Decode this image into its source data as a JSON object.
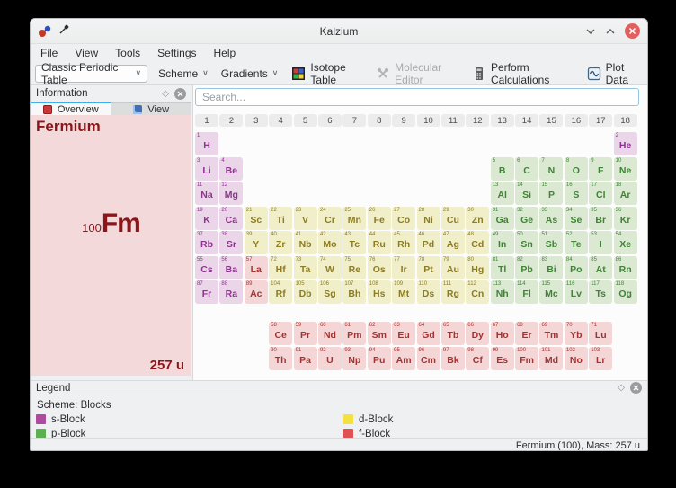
{
  "window": {
    "title": "Kalzium"
  },
  "menu": {
    "items": [
      "File",
      "View",
      "Tools",
      "Settings",
      "Help"
    ]
  },
  "toolbar": {
    "table_select": "Classic Periodic Table",
    "scheme_label": "Scheme",
    "gradients_label": "Gradients",
    "isotope_table_label": "Isotope Table",
    "molecular_editor_label": "Molecular Editor",
    "perform_calculations_label": "Perform Calculations",
    "plot_data_label": "Plot Data"
  },
  "information_panel": {
    "title": "Information",
    "tabs": [
      {
        "label": "Overview"
      },
      {
        "label": "View"
      }
    ],
    "element_name": "Fermium",
    "atomic_number": "100",
    "symbol": "Fm",
    "mass": "257 u"
  },
  "search": {
    "placeholder": "Search..."
  },
  "periodic_table": {
    "group_headers": [
      "1",
      "2",
      "3",
      "4",
      "5",
      "6",
      "7",
      "8",
      "9",
      "10",
      "11",
      "12",
      "13",
      "14",
      "15",
      "16",
      "17",
      "18"
    ],
    "elements": [
      {
        "n": 1,
        "s": "H",
        "b": "s",
        "r": 1,
        "c": 1
      },
      {
        "n": 2,
        "s": "He",
        "b": "s",
        "r": 1,
        "c": 18
      },
      {
        "n": 3,
        "s": "Li",
        "b": "s",
        "r": 2,
        "c": 1
      },
      {
        "n": 4,
        "s": "Be",
        "b": "s",
        "r": 2,
        "c": 2
      },
      {
        "n": 5,
        "s": "B",
        "b": "p",
        "r": 2,
        "c": 13
      },
      {
        "n": 6,
        "s": "C",
        "b": "p",
        "r": 2,
        "c": 14
      },
      {
        "n": 7,
        "s": "N",
        "b": "p",
        "r": 2,
        "c": 15
      },
      {
        "n": 8,
        "s": "O",
        "b": "p",
        "r": 2,
        "c": 16
      },
      {
        "n": 9,
        "s": "F",
        "b": "p",
        "r": 2,
        "c": 17
      },
      {
        "n": 10,
        "s": "Ne",
        "b": "p",
        "r": 2,
        "c": 18
      },
      {
        "n": 11,
        "s": "Na",
        "b": "s",
        "r": 3,
        "c": 1
      },
      {
        "n": 12,
        "s": "Mg",
        "b": "s",
        "r": 3,
        "c": 2
      },
      {
        "n": 13,
        "s": "Al",
        "b": "p",
        "r": 3,
        "c": 13
      },
      {
        "n": 14,
        "s": "Si",
        "b": "p",
        "r": 3,
        "c": 14
      },
      {
        "n": 15,
        "s": "P",
        "b": "p",
        "r": 3,
        "c": 15
      },
      {
        "n": 16,
        "s": "S",
        "b": "p",
        "r": 3,
        "c": 16
      },
      {
        "n": 17,
        "s": "Cl",
        "b": "p",
        "r": 3,
        "c": 17
      },
      {
        "n": 18,
        "s": "Ar",
        "b": "p",
        "r": 3,
        "c": 18
      },
      {
        "n": 19,
        "s": "K",
        "b": "s",
        "r": 4,
        "c": 1
      },
      {
        "n": 20,
        "s": "Ca",
        "b": "s",
        "r": 4,
        "c": 2
      },
      {
        "n": 21,
        "s": "Sc",
        "b": "d",
        "r": 4,
        "c": 3
      },
      {
        "n": 22,
        "s": "Ti",
        "b": "d",
        "r": 4,
        "c": 4
      },
      {
        "n": 23,
        "s": "V",
        "b": "d",
        "r": 4,
        "c": 5
      },
      {
        "n": 24,
        "s": "Cr",
        "b": "d",
        "r": 4,
        "c": 6
      },
      {
        "n": 25,
        "s": "Mn",
        "b": "d",
        "r": 4,
        "c": 7
      },
      {
        "n": 26,
        "s": "Fe",
        "b": "d",
        "r": 4,
        "c": 8
      },
      {
        "n": 27,
        "s": "Co",
        "b": "d",
        "r": 4,
        "c": 9
      },
      {
        "n": 28,
        "s": "Ni",
        "b": "d",
        "r": 4,
        "c": 10
      },
      {
        "n": 29,
        "s": "Cu",
        "b": "d",
        "r": 4,
        "c": 11
      },
      {
        "n": 30,
        "s": "Zn",
        "b": "d",
        "r": 4,
        "c": 12
      },
      {
        "n": 31,
        "s": "Ga",
        "b": "p",
        "r": 4,
        "c": 13
      },
      {
        "n": 32,
        "s": "Ge",
        "b": "p",
        "r": 4,
        "c": 14
      },
      {
        "n": 33,
        "s": "As",
        "b": "p",
        "r": 4,
        "c": 15
      },
      {
        "n": 34,
        "s": "Se",
        "b": "p",
        "r": 4,
        "c": 16
      },
      {
        "n": 35,
        "s": "Br",
        "b": "p",
        "r": 4,
        "c": 17
      },
      {
        "n": 36,
        "s": "Kr",
        "b": "p",
        "r": 4,
        "c": 18
      },
      {
        "n": 37,
        "s": "Rb",
        "b": "s",
        "r": 5,
        "c": 1
      },
      {
        "n": 38,
        "s": "Sr",
        "b": "s",
        "r": 5,
        "c": 2
      },
      {
        "n": 39,
        "s": "Y",
        "b": "d",
        "r": 5,
        "c": 3
      },
      {
        "n": 40,
        "s": "Zr",
        "b": "d",
        "r": 5,
        "c": 4
      },
      {
        "n": 41,
        "s": "Nb",
        "b": "d",
        "r": 5,
        "c": 5
      },
      {
        "n": 42,
        "s": "Mo",
        "b": "d",
        "r": 5,
        "c": 6
      },
      {
        "n": 43,
        "s": "Tc",
        "b": "d",
        "r": 5,
        "c": 7
      },
      {
        "n": 44,
        "s": "Ru",
        "b": "d",
        "r": 5,
        "c": 8
      },
      {
        "n": 45,
        "s": "Rh",
        "b": "d",
        "r": 5,
        "c": 9
      },
      {
        "n": 46,
        "s": "Pd",
        "b": "d",
        "r": 5,
        "c": 10
      },
      {
        "n": 47,
        "s": "Ag",
        "b": "d",
        "r": 5,
        "c": 11
      },
      {
        "n": 48,
        "s": "Cd",
        "b": "d",
        "r": 5,
        "c": 12
      },
      {
        "n": 49,
        "s": "In",
        "b": "p",
        "r": 5,
        "c": 13
      },
      {
        "n": 50,
        "s": "Sn",
        "b": "p",
        "r": 5,
        "c": 14
      },
      {
        "n": 51,
        "s": "Sb",
        "b": "p",
        "r": 5,
        "c": 15
      },
      {
        "n": 52,
        "s": "Te",
        "b": "p",
        "r": 5,
        "c": 16
      },
      {
        "n": 53,
        "s": "I",
        "b": "p",
        "r": 5,
        "c": 17
      },
      {
        "n": 54,
        "s": "Xe",
        "b": "p",
        "r": 5,
        "c": 18
      },
      {
        "n": 55,
        "s": "Cs",
        "b": "s",
        "r": 6,
        "c": 1
      },
      {
        "n": 56,
        "s": "Ba",
        "b": "s",
        "r": 6,
        "c": 2
      },
      {
        "n": 57,
        "s": "La",
        "b": "f",
        "r": 6,
        "c": 3
      },
      {
        "n": 72,
        "s": "Hf",
        "b": "d",
        "r": 6,
        "c": 4
      },
      {
        "n": 73,
        "s": "Ta",
        "b": "d",
        "r": 6,
        "c": 5
      },
      {
        "n": 74,
        "s": "W",
        "b": "d",
        "r": 6,
        "c": 6
      },
      {
        "n": 75,
        "s": "Re",
        "b": "d",
        "r": 6,
        "c": 7
      },
      {
        "n": 76,
        "s": "Os",
        "b": "d",
        "r": 6,
        "c": 8
      },
      {
        "n": 77,
        "s": "Ir",
        "b": "d",
        "r": 6,
        "c": 9
      },
      {
        "n": 78,
        "s": "Pt",
        "b": "d",
        "r": 6,
        "c": 10
      },
      {
        "n": 79,
        "s": "Au",
        "b": "d",
        "r": 6,
        "c": 11
      },
      {
        "n": 80,
        "s": "Hg",
        "b": "d",
        "r": 6,
        "c": 12
      },
      {
        "n": 81,
        "s": "Tl",
        "b": "p",
        "r": 6,
        "c": 13
      },
      {
        "n": 82,
        "s": "Pb",
        "b": "p",
        "r": 6,
        "c": 14
      },
      {
        "n": 83,
        "s": "Bi",
        "b": "p",
        "r": 6,
        "c": 15
      },
      {
        "n": 84,
        "s": "Po",
        "b": "p",
        "r": 6,
        "c": 16
      },
      {
        "n": 85,
        "s": "At",
        "b": "p",
        "r": 6,
        "c": 17
      },
      {
        "n": 86,
        "s": "Rn",
        "b": "p",
        "r": 6,
        "c": 18
      },
      {
        "n": 87,
        "s": "Fr",
        "b": "s",
        "r": 7,
        "c": 1
      },
      {
        "n": 88,
        "s": "Ra",
        "b": "s",
        "r": 7,
        "c": 2
      },
      {
        "n": 89,
        "s": "Ac",
        "b": "f",
        "r": 7,
        "c": 3
      },
      {
        "n": 104,
        "s": "Rf",
        "b": "d",
        "r": 7,
        "c": 4
      },
      {
        "n": 105,
        "s": "Db",
        "b": "d",
        "r": 7,
        "c": 5
      },
      {
        "n": 106,
        "s": "Sg",
        "b": "d",
        "r": 7,
        "c": 6
      },
      {
        "n": 107,
        "s": "Bh",
        "b": "d",
        "r": 7,
        "c": 7
      },
      {
        "n": 108,
        "s": "Hs",
        "b": "d",
        "r": 7,
        "c": 8
      },
      {
        "n": 109,
        "s": "Mt",
        "b": "d",
        "r": 7,
        "c": 9
      },
      {
        "n": 110,
        "s": "Ds",
        "b": "d",
        "r": 7,
        "c": 10
      },
      {
        "n": 111,
        "s": "Rg",
        "b": "d",
        "r": 7,
        "c": 11
      },
      {
        "n": 112,
        "s": "Cn",
        "b": "d",
        "r": 7,
        "c": 12
      },
      {
        "n": 113,
        "s": "Nh",
        "b": "p",
        "r": 7,
        "c": 13
      },
      {
        "n": 114,
        "s": "Fl",
        "b": "p",
        "r": 7,
        "c": 14
      },
      {
        "n": 115,
        "s": "Mc",
        "b": "p",
        "r": 7,
        "c": 15
      },
      {
        "n": 116,
        "s": "Lv",
        "b": "p",
        "r": 7,
        "c": 16
      },
      {
        "n": 117,
        "s": "Ts",
        "b": "p",
        "r": 7,
        "c": 17
      },
      {
        "n": 118,
        "s": "Og",
        "b": "p",
        "r": 7,
        "c": 18
      },
      {
        "n": 58,
        "s": "Ce",
        "b": "f",
        "r": 9,
        "c": 4
      },
      {
        "n": 59,
        "s": "Pr",
        "b": "f",
        "r": 9,
        "c": 5
      },
      {
        "n": 60,
        "s": "Nd",
        "b": "f",
        "r": 9,
        "c": 6
      },
      {
        "n": 61,
        "s": "Pm",
        "b": "f",
        "r": 9,
        "c": 7
      },
      {
        "n": 62,
        "s": "Sm",
        "b": "f",
        "r": 9,
        "c": 8
      },
      {
        "n": 63,
        "s": "Eu",
        "b": "f",
        "r": 9,
        "c": 9
      },
      {
        "n": 64,
        "s": "Gd",
        "b": "f",
        "r": 9,
        "c": 10
      },
      {
        "n": 65,
        "s": "Tb",
        "b": "f",
        "r": 9,
        "c": 11
      },
      {
        "n": 66,
        "s": "Dy",
        "b": "f",
        "r": 9,
        "c": 12
      },
      {
        "n": 67,
        "s": "Ho",
        "b": "f",
        "r": 9,
        "c": 13
      },
      {
        "n": 68,
        "s": "Er",
        "b": "f",
        "r": 9,
        "c": 14
      },
      {
        "n": 69,
        "s": "Tm",
        "b": "f",
        "r": 9,
        "c": 15
      },
      {
        "n": 70,
        "s": "Yb",
        "b": "f",
        "r": 9,
        "c": 16
      },
      {
        "n": 71,
        "s": "Lu",
        "b": "f",
        "r": 9,
        "c": 17
      },
      {
        "n": 90,
        "s": "Th",
        "b": "f",
        "r": 10,
        "c": 4
      },
      {
        "n": 91,
        "s": "Pa",
        "b": "f",
        "r": 10,
        "c": 5
      },
      {
        "n": 92,
        "s": "U",
        "b": "f",
        "r": 10,
        "c": 6
      },
      {
        "n": 93,
        "s": "Np",
        "b": "f",
        "r": 10,
        "c": 7
      },
      {
        "n": 94,
        "s": "Pu",
        "b": "f",
        "r": 10,
        "c": 8
      },
      {
        "n": 95,
        "s": "Am",
        "b": "f",
        "r": 10,
        "c": 9
      },
      {
        "n": 96,
        "s": "Cm",
        "b": "f",
        "r": 10,
        "c": 10
      },
      {
        "n": 97,
        "s": "Bk",
        "b": "f",
        "r": 10,
        "c": 11
      },
      {
        "n": 98,
        "s": "Cf",
        "b": "f",
        "r": 10,
        "c": 12
      },
      {
        "n": 99,
        "s": "Es",
        "b": "f",
        "r": 10,
        "c": 13
      },
      {
        "n": 100,
        "s": "Fm",
        "b": "f",
        "r": 10,
        "c": 14
      },
      {
        "n": 101,
        "s": "Md",
        "b": "f",
        "r": 10,
        "c": 15
      },
      {
        "n": 102,
        "s": "No",
        "b": "f",
        "r": 10,
        "c": 16
      },
      {
        "n": 103,
        "s": "Lr",
        "b": "f",
        "r": 10,
        "c": 17
      }
    ]
  },
  "legend": {
    "title": "Legend",
    "scheme_label": "Scheme: Blocks",
    "items": [
      {
        "label": "s-Block",
        "color": "#ae4a9f"
      },
      {
        "label": "d-Block",
        "color": "#f4e13f"
      },
      {
        "label": "p-Block",
        "color": "#5cb052"
      },
      {
        "label": "f-Block",
        "color": "#e05252"
      }
    ]
  },
  "statusbar": {
    "text": "Fermium (100), Mass: 257 u"
  },
  "colors": {
    "accent": "#3daee9",
    "s_bg": "#ead6e8",
    "s_text": "#8e3390",
    "p_bg": "#dbe9d3",
    "p_text": "#3f8434",
    "d_bg": "#f1eeca",
    "d_text": "#8c7c22",
    "f_bg": "#f4d6d6",
    "f_text": "#a33333",
    "info_bg": "#f4d9db",
    "info_text": "#8b161a"
  }
}
